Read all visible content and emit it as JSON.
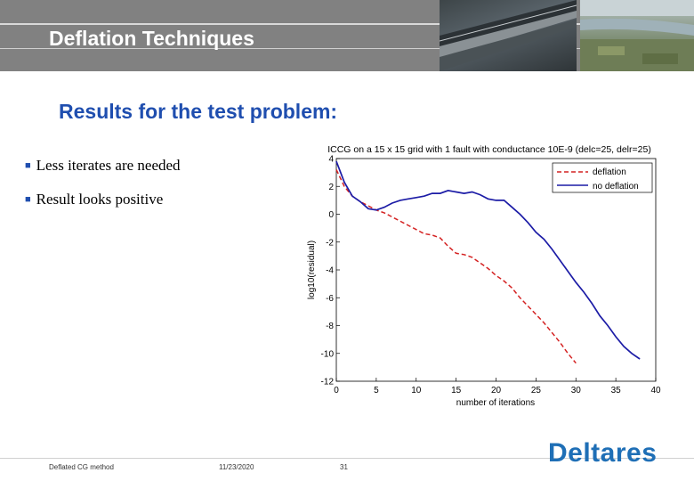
{
  "header": {
    "title": "Deflation Techniques"
  },
  "subtitle": "Results for the test problem:",
  "bullets": [
    "Less iterates are needed",
    "Result looks positive"
  ],
  "footer": {
    "left": "Deflated CG method",
    "date": "11/23/2020",
    "page": "31"
  },
  "logo": "Deltares",
  "colors": {
    "deflation": "#d42222",
    "no_deflation": "#1c1ca6",
    "subtitle": "#1f4eaf",
    "logo": "#1f6fb6"
  },
  "chart_data": {
    "type": "line",
    "title": "ICCG on a 15 x 15 grid with 1 fault with conductance 10E-9 (delc=25, delr=25)",
    "xlabel": "number of iterations",
    "ylabel": "log10(residual)",
    "xlim": [
      0,
      40
    ],
    "ylim": [
      -12,
      4
    ],
    "xticks": [
      0,
      5,
      10,
      15,
      20,
      25,
      30,
      35,
      40
    ],
    "yticks": [
      4,
      2,
      0,
      -2,
      -4,
      -6,
      -8,
      -10,
      -12
    ],
    "grid": false,
    "legend_position": "top-right",
    "series": [
      {
        "name": "deflation",
        "style": "dashed",
        "color": "#d42222",
        "x": [
          0,
          1,
          2,
          3,
          4,
          5,
          6,
          7,
          8,
          9,
          10,
          11,
          12,
          13,
          14,
          15,
          16,
          17,
          18,
          19,
          20,
          21,
          22,
          23,
          24,
          25,
          26,
          27,
          28,
          29,
          30
        ],
        "y": [
          3.2,
          2.0,
          1.3,
          0.9,
          0.6,
          0.3,
          0.1,
          -0.2,
          -0.5,
          -0.8,
          -1.1,
          -1.4,
          -1.5,
          -1.7,
          -2.3,
          -2.8,
          -2.9,
          -3.1,
          -3.5,
          -3.9,
          -4.4,
          -4.8,
          -5.3,
          -6.0,
          -6.6,
          -7.2,
          -7.8,
          -8.5,
          -9.2,
          -10.0,
          -10.7
        ]
      },
      {
        "name": "no deflation",
        "style": "solid",
        "color": "#1c1ca6",
        "x": [
          0,
          1,
          2,
          3,
          4,
          5,
          6,
          7,
          8,
          9,
          10,
          11,
          12,
          13,
          14,
          15,
          16,
          17,
          18,
          19,
          20,
          21,
          22,
          23,
          24,
          25,
          26,
          27,
          28,
          29,
          30,
          31,
          32,
          33,
          34,
          35,
          36,
          37,
          38
        ],
        "y": [
          3.8,
          2.3,
          1.3,
          0.9,
          0.4,
          0.3,
          0.5,
          0.8,
          1.0,
          1.1,
          1.2,
          1.3,
          1.5,
          1.5,
          1.7,
          1.6,
          1.5,
          1.6,
          1.4,
          1.1,
          1.0,
          1.0,
          0.5,
          0.0,
          -0.6,
          -1.3,
          -1.8,
          -2.5,
          -3.3,
          -4.1,
          -4.9,
          -5.6,
          -6.4,
          -7.3,
          -8.0,
          -8.8,
          -9.5,
          -10.0,
          -10.4
        ]
      }
    ]
  }
}
